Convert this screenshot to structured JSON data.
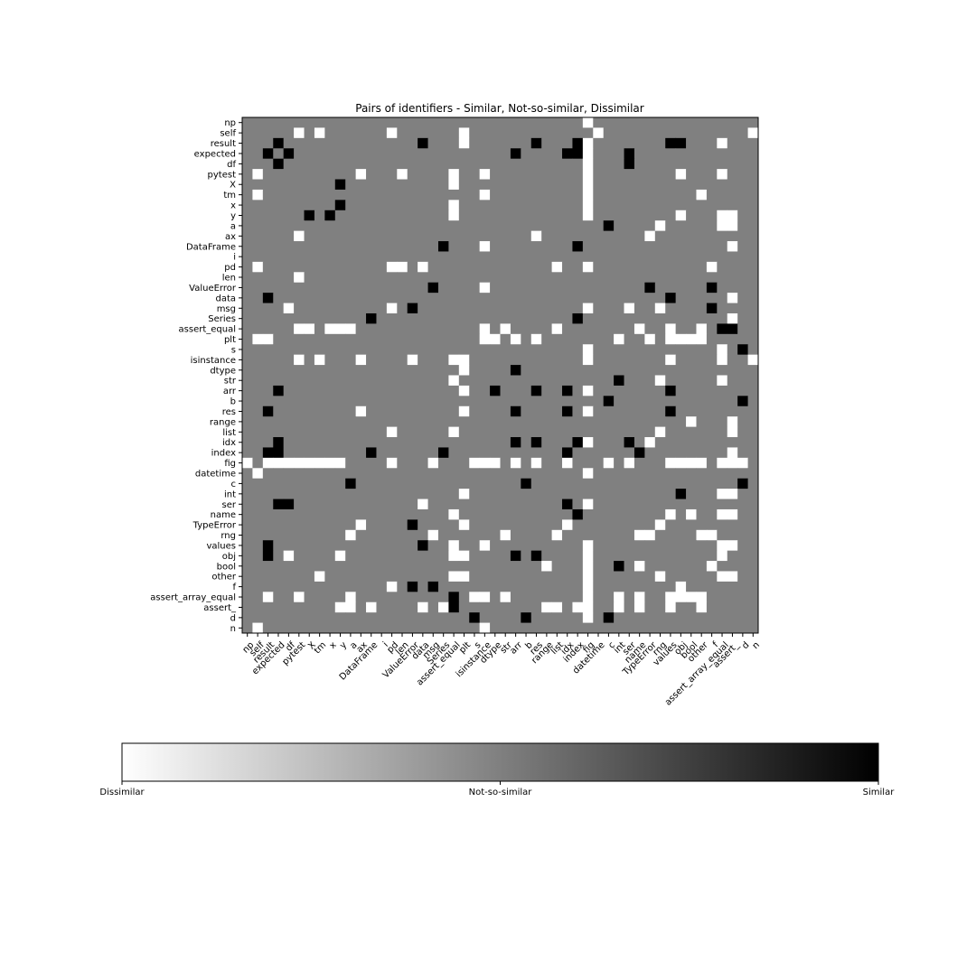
{
  "chart_data": {
    "type": "heatmap",
    "title": "Pairs of identifiers - Similar, Not-so-similar, Dissimilar",
    "labels": [
      "np",
      "self",
      "result",
      "expected",
      "df",
      "pytest",
      "X",
      "tm",
      "x",
      "y",
      "a",
      "ax",
      "DataFrame",
      "i",
      "pd",
      "len",
      "ValueError",
      "data",
      "msg",
      "Series",
      "assert_equal",
      "plt",
      "s",
      "isinstance",
      "dtype",
      "str",
      "arr",
      "b",
      "res",
      "range",
      "list",
      "idx",
      "index",
      "fig",
      "datetime",
      "c",
      "int",
      "ser",
      "name",
      "TypeError",
      "rng",
      "values",
      "obj",
      "bool",
      "other",
      "f",
      "assert_array_equal",
      "assert_",
      "d",
      "n"
    ],
    "value_encoding": {
      "dissimilar": 0,
      "not_so_similar": 1,
      "similar": 2
    },
    "default_value": 1,
    "dissimilar_cells": [
      [
        0,
        33
      ],
      [
        1,
        5
      ],
      [
        1,
        7
      ],
      [
        1,
        14
      ],
      [
        1,
        21
      ],
      [
        1,
        34
      ],
      [
        1,
        49
      ],
      [
        2,
        21
      ],
      [
        2,
        33
      ],
      [
        2,
        46
      ],
      [
        3,
        33
      ],
      [
        4,
        33
      ],
      [
        5,
        1
      ],
      [
        5,
        20
      ],
      [
        5,
        23
      ],
      [
        5,
        33
      ],
      [
        5,
        11
      ],
      [
        5,
        15
      ],
      [
        5,
        42
      ],
      [
        5,
        46
      ],
      [
        6,
        20
      ],
      [
        6,
        33
      ],
      [
        7,
        1
      ],
      [
        7,
        23
      ],
      [
        7,
        33
      ],
      [
        7,
        44
      ],
      [
        8,
        20
      ],
      [
        8,
        33
      ],
      [
        9,
        20
      ],
      [
        9,
        33
      ],
      [
        9,
        42
      ],
      [
        9,
        47
      ],
      [
        9,
        46
      ],
      [
        10,
        40
      ],
      [
        10,
        46
      ],
      [
        10,
        47
      ],
      [
        11,
        5
      ],
      [
        11,
        28
      ],
      [
        11,
        39
      ],
      [
        12,
        23
      ],
      [
        12,
        47
      ],
      [
        14,
        1
      ],
      [
        14,
        15
      ],
      [
        14,
        17
      ],
      [
        14,
        30
      ],
      [
        14,
        33
      ],
      [
        14,
        45
      ],
      [
        15,
        5
      ],
      [
        14,
        14
      ],
      [
        16,
        23
      ],
      [
        17,
        47
      ],
      [
        18,
        4
      ],
      [
        18,
        14
      ],
      [
        18,
        33
      ],
      [
        18,
        37
      ],
      [
        18,
        40
      ],
      [
        19,
        47
      ],
      [
        20,
        5
      ],
      [
        20,
        6
      ],
      [
        20,
        8
      ],
      [
        20,
        9
      ],
      [
        20,
        10
      ],
      [
        20,
        23
      ],
      [
        20,
        25
      ],
      [
        20,
        30
      ],
      [
        20,
        38
      ],
      [
        20,
        41
      ],
      [
        20,
        44
      ],
      [
        21,
        1
      ],
      [
        21,
        2
      ],
      [
        21,
        23
      ],
      [
        21,
        24
      ],
      [
        21,
        26
      ],
      [
        21,
        28
      ],
      [
        21,
        36
      ],
      [
        21,
        39
      ],
      [
        21,
        41
      ],
      [
        21,
        42
      ],
      [
        21,
        43
      ],
      [
        21,
        44
      ],
      [
        22,
        33
      ],
      [
        22,
        46
      ],
      [
        23,
        5
      ],
      [
        23,
        7
      ],
      [
        23,
        11
      ],
      [
        23,
        16
      ],
      [
        23,
        20
      ],
      [
        23,
        21
      ],
      [
        23,
        33
      ],
      [
        23,
        41
      ],
      [
        23,
        46
      ],
      [
        23,
        49
      ],
      [
        24,
        21
      ],
      [
        25,
        20
      ],
      [
        25,
        40
      ],
      [
        25,
        46
      ],
      [
        26,
        21
      ],
      [
        26,
        33
      ],
      [
        28,
        11
      ],
      [
        28,
        21
      ],
      [
        28,
        33
      ],
      [
        29,
        43
      ],
      [
        29,
        47
      ],
      [
        30,
        14
      ],
      [
        30,
        20
      ],
      [
        30,
        40
      ],
      [
        30,
        47
      ],
      [
        31,
        33
      ],
      [
        31,
        39
      ],
      [
        32,
        47
      ],
      [
        33,
        0
      ],
      [
        33,
        2
      ],
      [
        33,
        3
      ],
      [
        33,
        4
      ],
      [
        33,
        5
      ],
      [
        33,
        6
      ],
      [
        33,
        7
      ],
      [
        33,
        8
      ],
      [
        33,
        9
      ],
      [
        33,
        14
      ],
      [
        33,
        18
      ],
      [
        33,
        22
      ],
      [
        33,
        23
      ],
      [
        33,
        24
      ],
      [
        33,
        26
      ],
      [
        33,
        28
      ],
      [
        33,
        31
      ],
      [
        33,
        35
      ],
      [
        33,
        37
      ],
      [
        33,
        41
      ],
      [
        33,
        42
      ],
      [
        33,
        43
      ],
      [
        33,
        44
      ],
      [
        33,
        46
      ],
      [
        33,
        47
      ],
      [
        33,
        48
      ],
      [
        34,
        1
      ],
      [
        34,
        33
      ],
      [
        36,
        21
      ],
      [
        36,
        46
      ],
      [
        36,
        47
      ],
      [
        37,
        17
      ],
      [
        37,
        33
      ],
      [
        38,
        20
      ],
      [
        38,
        41
      ],
      [
        38,
        43
      ],
      [
        38,
        46
      ],
      [
        38,
        47
      ],
      [
        39,
        11
      ],
      [
        39,
        21
      ],
      [
        39,
        31
      ],
      [
        39,
        40
      ],
      [
        40,
        10
      ],
      [
        40,
        18
      ],
      [
        40,
        25
      ],
      [
        40,
        30
      ],
      [
        40,
        38
      ],
      [
        40,
        39
      ],
      [
        40,
        44
      ],
      [
        40,
        45
      ],
      [
        41,
        20
      ],
      [
        41,
        23
      ],
      [
        41,
        33
      ],
      [
        41,
        46
      ],
      [
        41,
        47
      ],
      [
        42,
        4
      ],
      [
        42,
        9
      ],
      [
        42,
        20
      ],
      [
        42,
        21
      ],
      [
        42,
        33
      ],
      [
        42,
        46
      ],
      [
        43,
        29
      ],
      [
        43,
        33
      ],
      [
        43,
        38
      ],
      [
        43,
        45
      ],
      [
        44,
        7
      ],
      [
        44,
        20
      ],
      [
        44,
        21
      ],
      [
        44,
        33
      ],
      [
        44,
        40
      ],
      [
        44,
        46
      ],
      [
        44,
        47
      ],
      [
        45,
        14
      ],
      [
        45,
        33
      ],
      [
        45,
        42
      ],
      [
        46,
        2
      ],
      [
        46,
        5
      ],
      [
        46,
        10
      ],
      [
        46,
        22
      ],
      [
        46,
        23
      ],
      [
        46,
        25
      ],
      [
        46,
        33
      ],
      [
        46,
        36
      ],
      [
        46,
        38
      ],
      [
        46,
        41
      ],
      [
        46,
        42
      ],
      [
        46,
        43
      ],
      [
        46,
        44
      ],
      [
        47,
        9
      ],
      [
        47,
        10
      ],
      [
        47,
        12
      ],
      [
        47,
        17
      ],
      [
        47,
        19
      ],
      [
        47,
        29
      ],
      [
        47,
        30
      ],
      [
        47,
        32
      ],
      [
        47,
        33
      ],
      [
        47,
        36
      ],
      [
        47,
        38
      ],
      [
        47,
        41
      ],
      [
        47,
        44
      ],
      [
        48,
        33
      ],
      [
        49,
        1
      ],
      [
        49,
        23
      ]
    ],
    "similar_cells": [
      [
        2,
        3
      ],
      [
        2,
        17
      ],
      [
        2,
        28
      ],
      [
        2,
        32
      ],
      [
        2,
        41
      ],
      [
        2,
        42
      ],
      [
        3,
        2
      ],
      [
        3,
        4
      ],
      [
        3,
        26
      ],
      [
        3,
        31
      ],
      [
        3,
        32
      ],
      [
        3,
        37
      ],
      [
        4,
        3
      ],
      [
        4,
        37
      ],
      [
        6,
        9
      ],
      [
        8,
        9
      ],
      [
        9,
        6
      ],
      [
        9,
        8
      ],
      [
        10,
        35
      ],
      [
        12,
        19
      ],
      [
        12,
        32
      ],
      [
        16,
        18
      ],
      [
        16,
        39
      ],
      [
        16,
        45
      ],
      [
        17,
        2
      ],
      [
        17,
        41
      ],
      [
        18,
        16
      ],
      [
        18,
        45
      ],
      [
        19,
        12
      ],
      [
        19,
        32
      ],
      [
        20,
        46
      ],
      [
        20,
        47
      ],
      [
        22,
        48
      ],
      [
        24,
        26
      ],
      [
        25,
        36
      ],
      [
        26,
        3
      ],
      [
        26,
        24
      ],
      [
        26,
        28
      ],
      [
        26,
        31
      ],
      [
        26,
        41
      ],
      [
        27,
        35
      ],
      [
        27,
        48
      ],
      [
        28,
        2
      ],
      [
        28,
        26
      ],
      [
        28,
        31
      ],
      [
        28,
        41
      ],
      [
        31,
        3
      ],
      [
        31,
        26
      ],
      [
        31,
        28
      ],
      [
        31,
        32
      ],
      [
        31,
        37
      ],
      [
        32,
        2
      ],
      [
        32,
        3
      ],
      [
        32,
        12
      ],
      [
        32,
        19
      ],
      [
        32,
        31
      ],
      [
        32,
        38
      ],
      [
        35,
        10
      ],
      [
        35,
        27
      ],
      [
        35,
        48
      ],
      [
        36,
        42
      ],
      [
        37,
        3
      ],
      [
        37,
        4
      ],
      [
        37,
        31
      ],
      [
        38,
        32
      ],
      [
        39,
        16
      ],
      [
        41,
        2
      ],
      [
        41,
        17
      ],
      [
        42,
        2
      ],
      [
        42,
        26
      ],
      [
        42,
        28
      ],
      [
        43,
        36
      ],
      [
        45,
        16
      ],
      [
        45,
        18
      ],
      [
        46,
        20
      ],
      [
        47,
        20
      ],
      [
        48,
        22
      ],
      [
        48,
        27
      ],
      [
        48,
        35
      ]
    ],
    "colorbar": {
      "left_label": "Dissimilar",
      "middle_label": "Not-so-similar",
      "right_label": "Similar",
      "colors": [
        "#ffffff",
        "#808080",
        "#000000"
      ]
    },
    "colors": {
      "dissimilar": "#ffffff",
      "not_so_similar": "#808080",
      "similar": "#000000"
    }
  }
}
